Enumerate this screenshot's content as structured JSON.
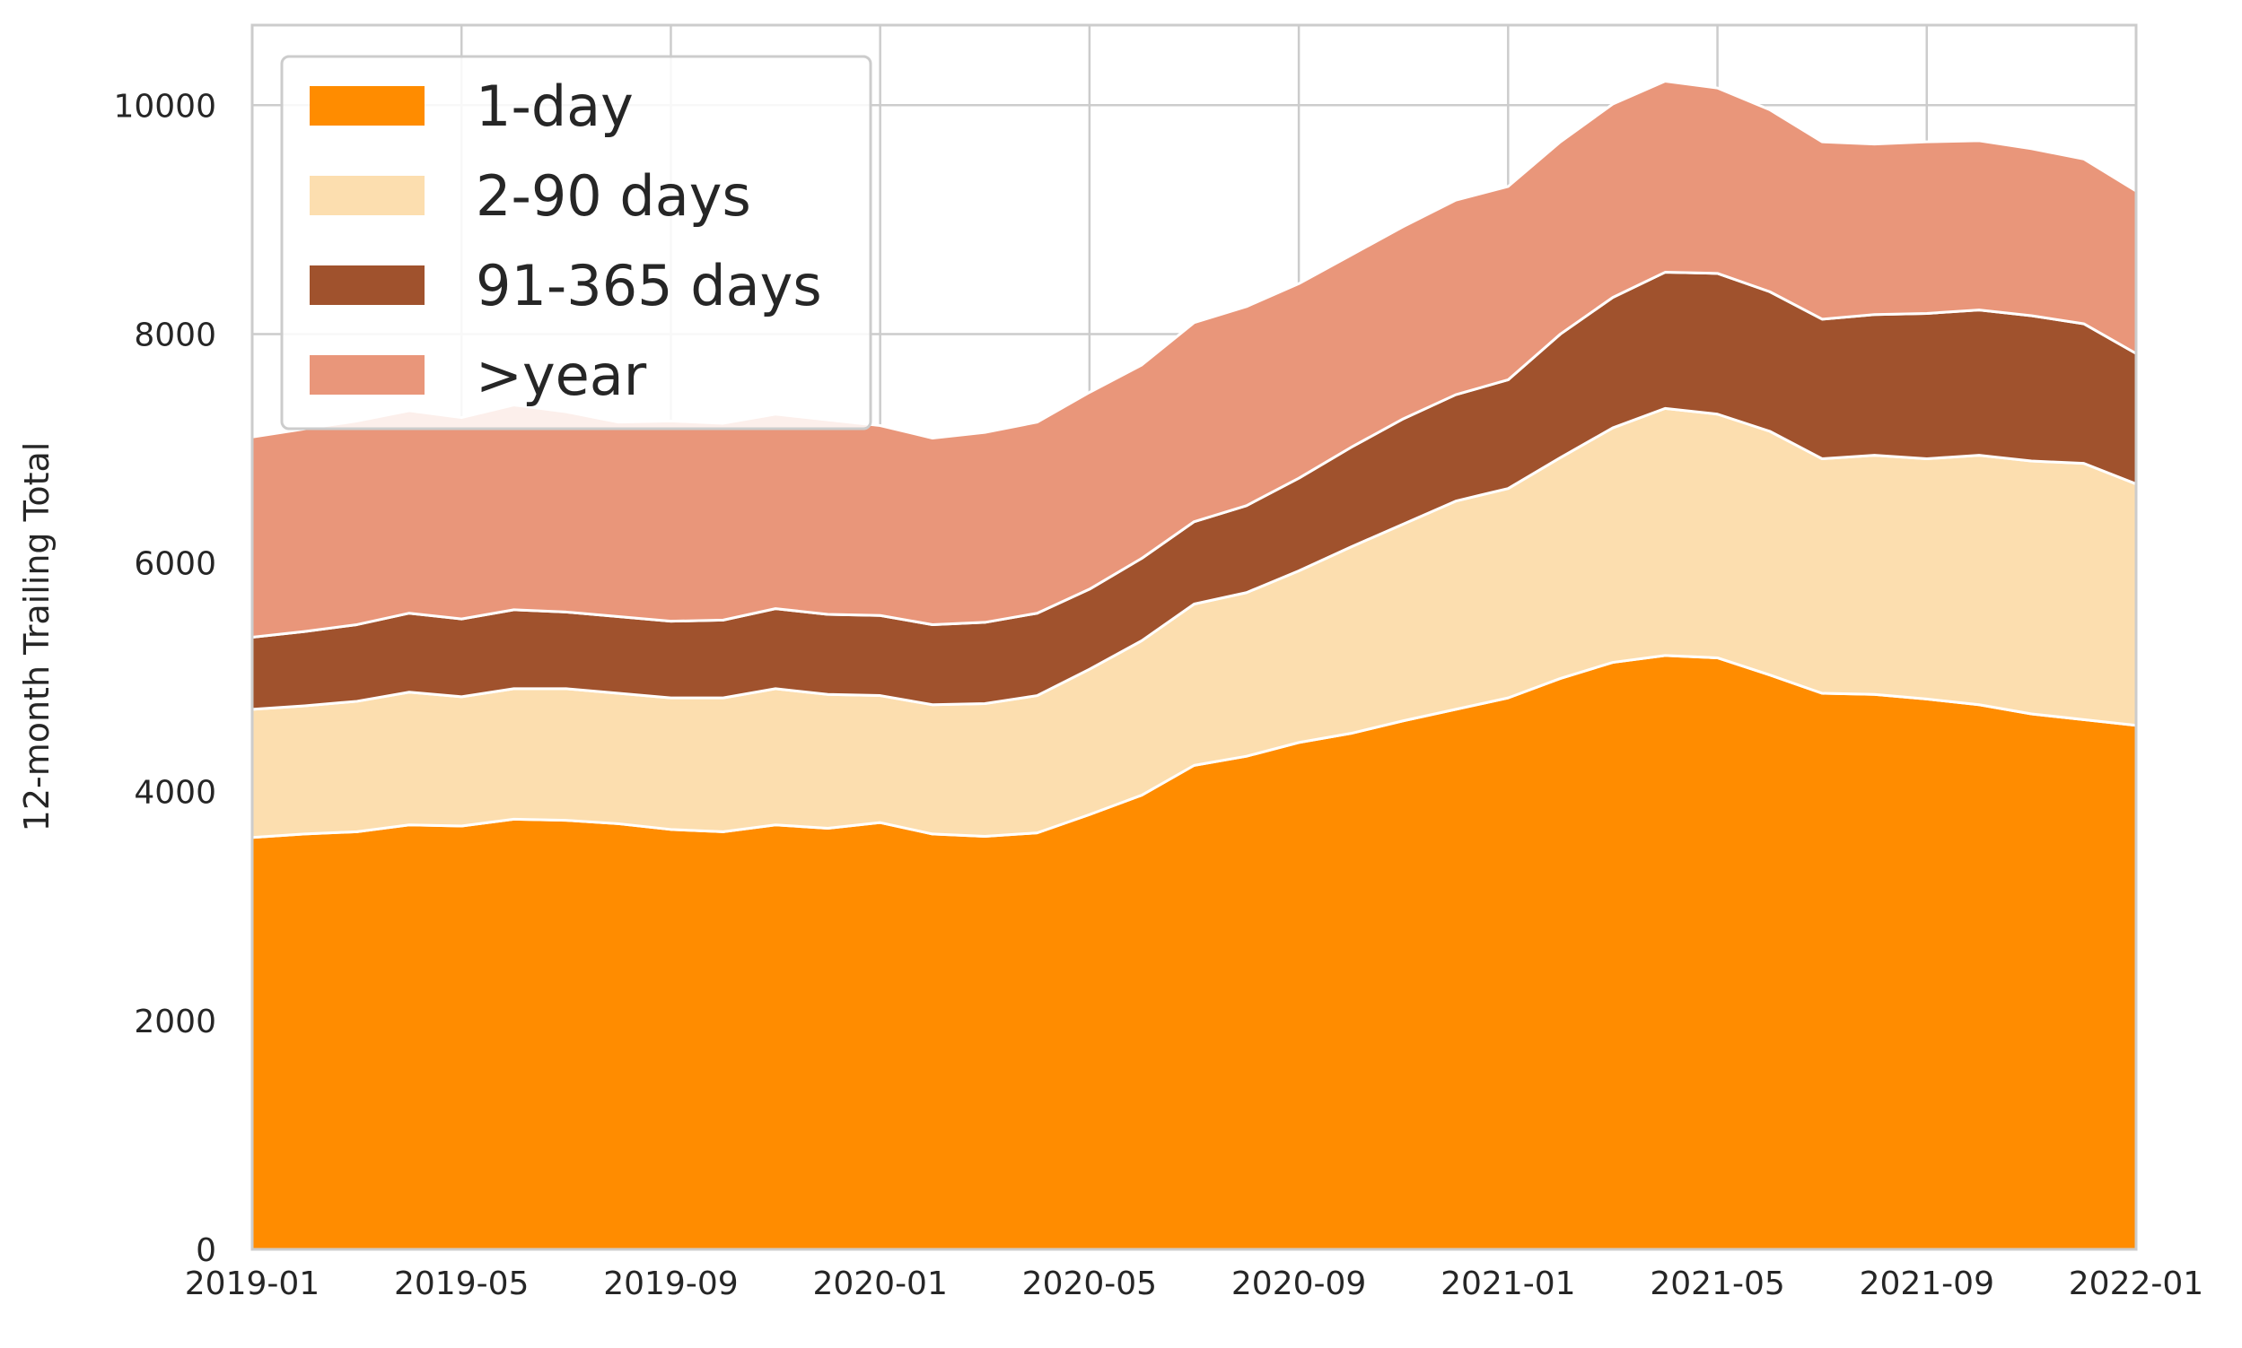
{
  "chart_data": {
    "type": "area",
    "stacked": true,
    "title": "",
    "xlabel": "",
    "ylabel": "12-month Trailing Total",
    "x": [
      "2019-01",
      "2019-02",
      "2019-03",
      "2019-04",
      "2019-05",
      "2019-06",
      "2019-07",
      "2019-08",
      "2019-09",
      "2019-10",
      "2019-11",
      "2019-12",
      "2020-01",
      "2020-02",
      "2020-03",
      "2020-04",
      "2020-05",
      "2020-06",
      "2020-07",
      "2020-08",
      "2020-09",
      "2020-10",
      "2020-11",
      "2020-12",
      "2021-01",
      "2021-02",
      "2021-03",
      "2021-04",
      "2021-05",
      "2021-06",
      "2021-07",
      "2021-08",
      "2021-09",
      "2021-10",
      "2021-11",
      "2021-12",
      "2022-01"
    ],
    "xticks": [
      "2019-01",
      "2019-05",
      "2019-09",
      "2020-01",
      "2020-05",
      "2020-09",
      "2021-01",
      "2021-05",
      "2021-09",
      "2022-01"
    ],
    "xlim": [
      "2019-01",
      "2022-01"
    ],
    "ylim": [
      0,
      10700
    ],
    "yticks": [
      0,
      2000,
      4000,
      6000,
      8000,
      10000
    ],
    "grid": true,
    "legend_position": "top-left",
    "series": [
      {
        "name": "1-day",
        "color": "#ff8c00",
        "values": [
          3600,
          3630,
          3650,
          3710,
          3700,
          3760,
          3750,
          3720,
          3670,
          3650,
          3710,
          3680,
          3730,
          3630,
          3610,
          3640,
          3800,
          3970,
          4230,
          4310,
          4430,
          4510,
          4620,
          4720,
          4820,
          4990,
          5130,
          5190,
          5170,
          5020,
          4860,
          4850,
          4810,
          4760,
          4680,
          4630,
          4580
        ]
      },
      {
        "name": "2-90 days",
        "color": "#fcdeaf",
        "values": [
          1120,
          1120,
          1140,
          1160,
          1130,
          1140,
          1150,
          1140,
          1150,
          1170,
          1190,
          1170,
          1110,
          1130,
          1160,
          1200,
          1270,
          1350,
          1410,
          1430,
          1500,
          1630,
          1720,
          1820,
          1830,
          1930,
          2050,
          2160,
          2130,
          2130,
          2050,
          2090,
          2100,
          2180,
          2210,
          2240,
          2110
        ]
      },
      {
        "name": "91-365 days",
        "color": "#a0522d",
        "values": [
          630,
          650,
          670,
          690,
          680,
          690,
          670,
          670,
          670,
          680,
          700,
          700,
          700,
          700,
          710,
          720,
          700,
          720,
          720,
          760,
          810,
          870,
          920,
          930,
          950,
          1080,
          1140,
          1190,
          1230,
          1220,
          1220,
          1230,
          1270,
          1270,
          1270,
          1220,
          1140
        ]
      },
      {
        "name": ">year",
        "color": "#e9967a",
        "values": [
          1750,
          1770,
          1780,
          1770,
          1760,
          1790,
          1750,
          1700,
          1750,
          1720,
          1700,
          1700,
          1660,
          1630,
          1660,
          1670,
          1720,
          1690,
          1740,
          1740,
          1700,
          1680,
          1680,
          1700,
          1690,
          1680,
          1690,
          1670,
          1620,
          1590,
          1550,
          1490,
          1500,
          1480,
          1460,
          1440,
          1420
        ]
      }
    ]
  }
}
